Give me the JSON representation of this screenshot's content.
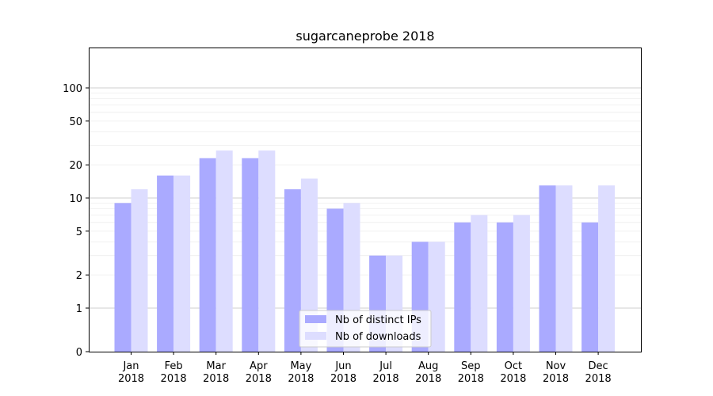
{
  "chart_data": {
    "type": "bar",
    "title": "sugarcaneprobe 2018",
    "xlabel": "",
    "ylabel": "",
    "yscale": "symlog",
    "ylim": [
      0,
      110
    ],
    "yticks": [
      0,
      1,
      2,
      5,
      10,
      20,
      50,
      100
    ],
    "categories": [
      [
        "Jan",
        "2018"
      ],
      [
        "Feb",
        "2018"
      ],
      [
        "Mar",
        "2018"
      ],
      [
        "Apr",
        "2018"
      ],
      [
        "May",
        "2018"
      ],
      [
        "Jun",
        "2018"
      ],
      [
        "Jul",
        "2018"
      ],
      [
        "Aug",
        "2018"
      ],
      [
        "Sep",
        "2018"
      ],
      [
        "Oct",
        "2018"
      ],
      [
        "Nov",
        "2018"
      ],
      [
        "Dec",
        "2018"
      ]
    ],
    "series": [
      {
        "name": "Nb of distinct IPs",
        "color": "#aaaaff",
        "values": [
          9,
          16,
          23,
          23,
          12,
          8,
          3,
          4,
          6,
          6,
          13,
          6
        ]
      },
      {
        "name": "Nb of downloads",
        "color": "#ddddff",
        "values": [
          12,
          16,
          27,
          27,
          15,
          9,
          3,
          4,
          7,
          7,
          13,
          13
        ]
      }
    ],
    "grid": true,
    "legend": "lower-center"
  }
}
